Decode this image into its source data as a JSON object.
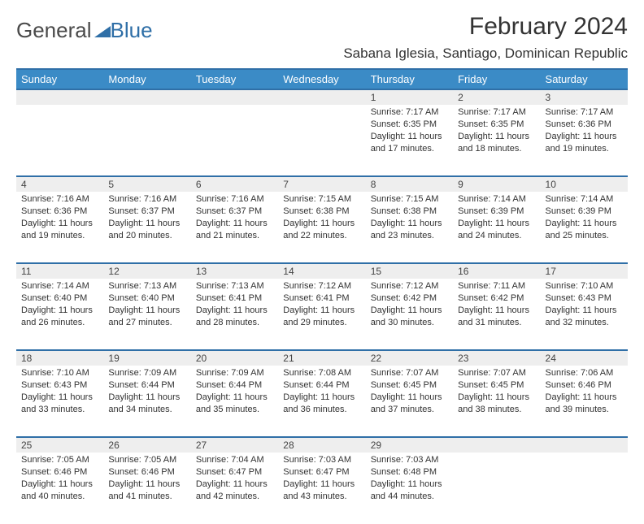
{
  "brand": {
    "part1": "General",
    "part2": "Blue"
  },
  "title": "February 2024",
  "location": "Sabana Iglesia, Santiago, Dominican Republic",
  "colors": {
    "header_bg": "#3b8bc6",
    "rule": "#2f6fa7",
    "daynum_bg": "#eeeeee",
    "text": "#333333",
    "brand_gray": "#4a4a4a",
    "brand_blue": "#2f6fa7"
  },
  "typography": {
    "title_fontsize": 30,
    "location_fontsize": 17,
    "dayheader_fontsize": 13,
    "body_fontsize": 11
  },
  "day_headers": [
    "Sunday",
    "Monday",
    "Tuesday",
    "Wednesday",
    "Thursday",
    "Friday",
    "Saturday"
  ],
  "weeks": [
    [
      null,
      null,
      null,
      null,
      {
        "n": "1",
        "sr": "Sunrise: 7:17 AM",
        "ss": "Sunset: 6:35 PM",
        "dl": "Daylight: 11 hours and 17 minutes."
      },
      {
        "n": "2",
        "sr": "Sunrise: 7:17 AM",
        "ss": "Sunset: 6:35 PM",
        "dl": "Daylight: 11 hours and 18 minutes."
      },
      {
        "n": "3",
        "sr": "Sunrise: 7:17 AM",
        "ss": "Sunset: 6:36 PM",
        "dl": "Daylight: 11 hours and 19 minutes."
      }
    ],
    [
      {
        "n": "4",
        "sr": "Sunrise: 7:16 AM",
        "ss": "Sunset: 6:36 PM",
        "dl": "Daylight: 11 hours and 19 minutes."
      },
      {
        "n": "5",
        "sr": "Sunrise: 7:16 AM",
        "ss": "Sunset: 6:37 PM",
        "dl": "Daylight: 11 hours and 20 minutes."
      },
      {
        "n": "6",
        "sr": "Sunrise: 7:16 AM",
        "ss": "Sunset: 6:37 PM",
        "dl": "Daylight: 11 hours and 21 minutes."
      },
      {
        "n": "7",
        "sr": "Sunrise: 7:15 AM",
        "ss": "Sunset: 6:38 PM",
        "dl": "Daylight: 11 hours and 22 minutes."
      },
      {
        "n": "8",
        "sr": "Sunrise: 7:15 AM",
        "ss": "Sunset: 6:38 PM",
        "dl": "Daylight: 11 hours and 23 minutes."
      },
      {
        "n": "9",
        "sr": "Sunrise: 7:14 AM",
        "ss": "Sunset: 6:39 PM",
        "dl": "Daylight: 11 hours and 24 minutes."
      },
      {
        "n": "10",
        "sr": "Sunrise: 7:14 AM",
        "ss": "Sunset: 6:39 PM",
        "dl": "Daylight: 11 hours and 25 minutes."
      }
    ],
    [
      {
        "n": "11",
        "sr": "Sunrise: 7:14 AM",
        "ss": "Sunset: 6:40 PM",
        "dl": "Daylight: 11 hours and 26 minutes."
      },
      {
        "n": "12",
        "sr": "Sunrise: 7:13 AM",
        "ss": "Sunset: 6:40 PM",
        "dl": "Daylight: 11 hours and 27 minutes."
      },
      {
        "n": "13",
        "sr": "Sunrise: 7:13 AM",
        "ss": "Sunset: 6:41 PM",
        "dl": "Daylight: 11 hours and 28 minutes."
      },
      {
        "n": "14",
        "sr": "Sunrise: 7:12 AM",
        "ss": "Sunset: 6:41 PM",
        "dl": "Daylight: 11 hours and 29 minutes."
      },
      {
        "n": "15",
        "sr": "Sunrise: 7:12 AM",
        "ss": "Sunset: 6:42 PM",
        "dl": "Daylight: 11 hours and 30 minutes."
      },
      {
        "n": "16",
        "sr": "Sunrise: 7:11 AM",
        "ss": "Sunset: 6:42 PM",
        "dl": "Daylight: 11 hours and 31 minutes."
      },
      {
        "n": "17",
        "sr": "Sunrise: 7:10 AM",
        "ss": "Sunset: 6:43 PM",
        "dl": "Daylight: 11 hours and 32 minutes."
      }
    ],
    [
      {
        "n": "18",
        "sr": "Sunrise: 7:10 AM",
        "ss": "Sunset: 6:43 PM",
        "dl": "Daylight: 11 hours and 33 minutes."
      },
      {
        "n": "19",
        "sr": "Sunrise: 7:09 AM",
        "ss": "Sunset: 6:44 PM",
        "dl": "Daylight: 11 hours and 34 minutes."
      },
      {
        "n": "20",
        "sr": "Sunrise: 7:09 AM",
        "ss": "Sunset: 6:44 PM",
        "dl": "Daylight: 11 hours and 35 minutes."
      },
      {
        "n": "21",
        "sr": "Sunrise: 7:08 AM",
        "ss": "Sunset: 6:44 PM",
        "dl": "Daylight: 11 hours and 36 minutes."
      },
      {
        "n": "22",
        "sr": "Sunrise: 7:07 AM",
        "ss": "Sunset: 6:45 PM",
        "dl": "Daylight: 11 hours and 37 minutes."
      },
      {
        "n": "23",
        "sr": "Sunrise: 7:07 AM",
        "ss": "Sunset: 6:45 PM",
        "dl": "Daylight: 11 hours and 38 minutes."
      },
      {
        "n": "24",
        "sr": "Sunrise: 7:06 AM",
        "ss": "Sunset: 6:46 PM",
        "dl": "Daylight: 11 hours and 39 minutes."
      }
    ],
    [
      {
        "n": "25",
        "sr": "Sunrise: 7:05 AM",
        "ss": "Sunset: 6:46 PM",
        "dl": "Daylight: 11 hours and 40 minutes."
      },
      {
        "n": "26",
        "sr": "Sunrise: 7:05 AM",
        "ss": "Sunset: 6:46 PM",
        "dl": "Daylight: 11 hours and 41 minutes."
      },
      {
        "n": "27",
        "sr": "Sunrise: 7:04 AM",
        "ss": "Sunset: 6:47 PM",
        "dl": "Daylight: 11 hours and 42 minutes."
      },
      {
        "n": "28",
        "sr": "Sunrise: 7:03 AM",
        "ss": "Sunset: 6:47 PM",
        "dl": "Daylight: 11 hours and 43 minutes."
      },
      {
        "n": "29",
        "sr": "Sunrise: 7:03 AM",
        "ss": "Sunset: 6:48 PM",
        "dl": "Daylight: 11 hours and 44 minutes."
      },
      null,
      null
    ]
  ]
}
